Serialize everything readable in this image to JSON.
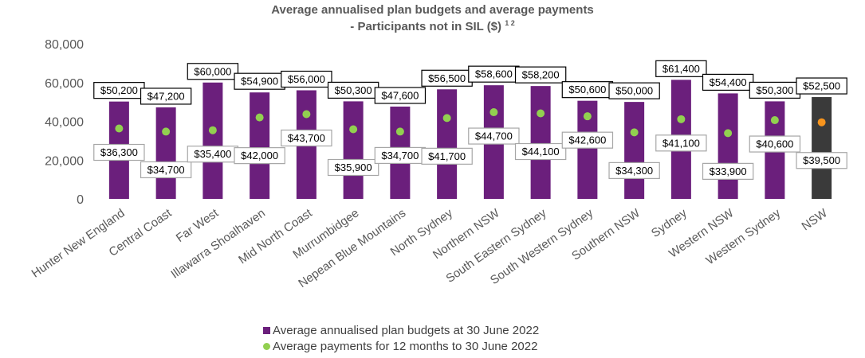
{
  "chart_data": {
    "type": "bar",
    "title_line1": "Average annualised plan budgets and average payments",
    "title_line2": "- Participants not in SIL ($) ",
    "title_superscript": "1 2",
    "categories": [
      "Hunter New England",
      "Central Coast",
      "Far West",
      "Illawarra Shoalhaven",
      "Mid North Coast",
      "Murrumbidgee",
      "Nepean Blue Mountains",
      "North Sydney",
      "Northern NSW",
      "South Eastern Sydney",
      "South Western Sydney",
      "Southern NSW",
      "Sydney",
      "Western NSW",
      "Western Sydney",
      "NSW"
    ],
    "series": [
      {
        "name": "Average annualised plan budgets at 30 June 2022",
        "type": "bar",
        "values": [
          50200,
          47200,
          60000,
          54900,
          56000,
          50300,
          47600,
          56500,
          58600,
          58200,
          50600,
          50000,
          61400,
          54400,
          50300,
          52500
        ],
        "labels": [
          "$50,200",
          "$47,200",
          "$60,000",
          "$54,900",
          "$56,000",
          "$50,300",
          "$47,600",
          "$56,500",
          "$58,600",
          "$58,200",
          "$50,600",
          "$50,000",
          "$61,400",
          "$54,400",
          "$50,300",
          "$52,500"
        ]
      },
      {
        "name": "Average payments for 12 months to 30 June 2022",
        "type": "scatter",
        "values": [
          36300,
          34700,
          35400,
          42000,
          43700,
          35900,
          34700,
          41700,
          44700,
          44100,
          42600,
          34300,
          41100,
          33900,
          40600,
          39500
        ],
        "labels": [
          "$36,300",
          "$34,700",
          "$35,400",
          "$42,000",
          "$43,700",
          "$35,900",
          "$34,700",
          "$41,700",
          "$44,700",
          "$44,100",
          "$42,600",
          "$34,300",
          "$41,100",
          "$33,900",
          "$40,600",
          "$39,500"
        ]
      }
    ],
    "y_ticks": [
      "0",
      "20,000",
      "40,000",
      "60,000",
      "80,000"
    ],
    "ylim": [
      0,
      80000
    ],
    "colors": {
      "bar": "#6B1F7C",
      "bar_total": "#3A3A3A",
      "dot": "#92D050",
      "dot_total": "#F7941D",
      "axis_text": "#595959"
    }
  }
}
